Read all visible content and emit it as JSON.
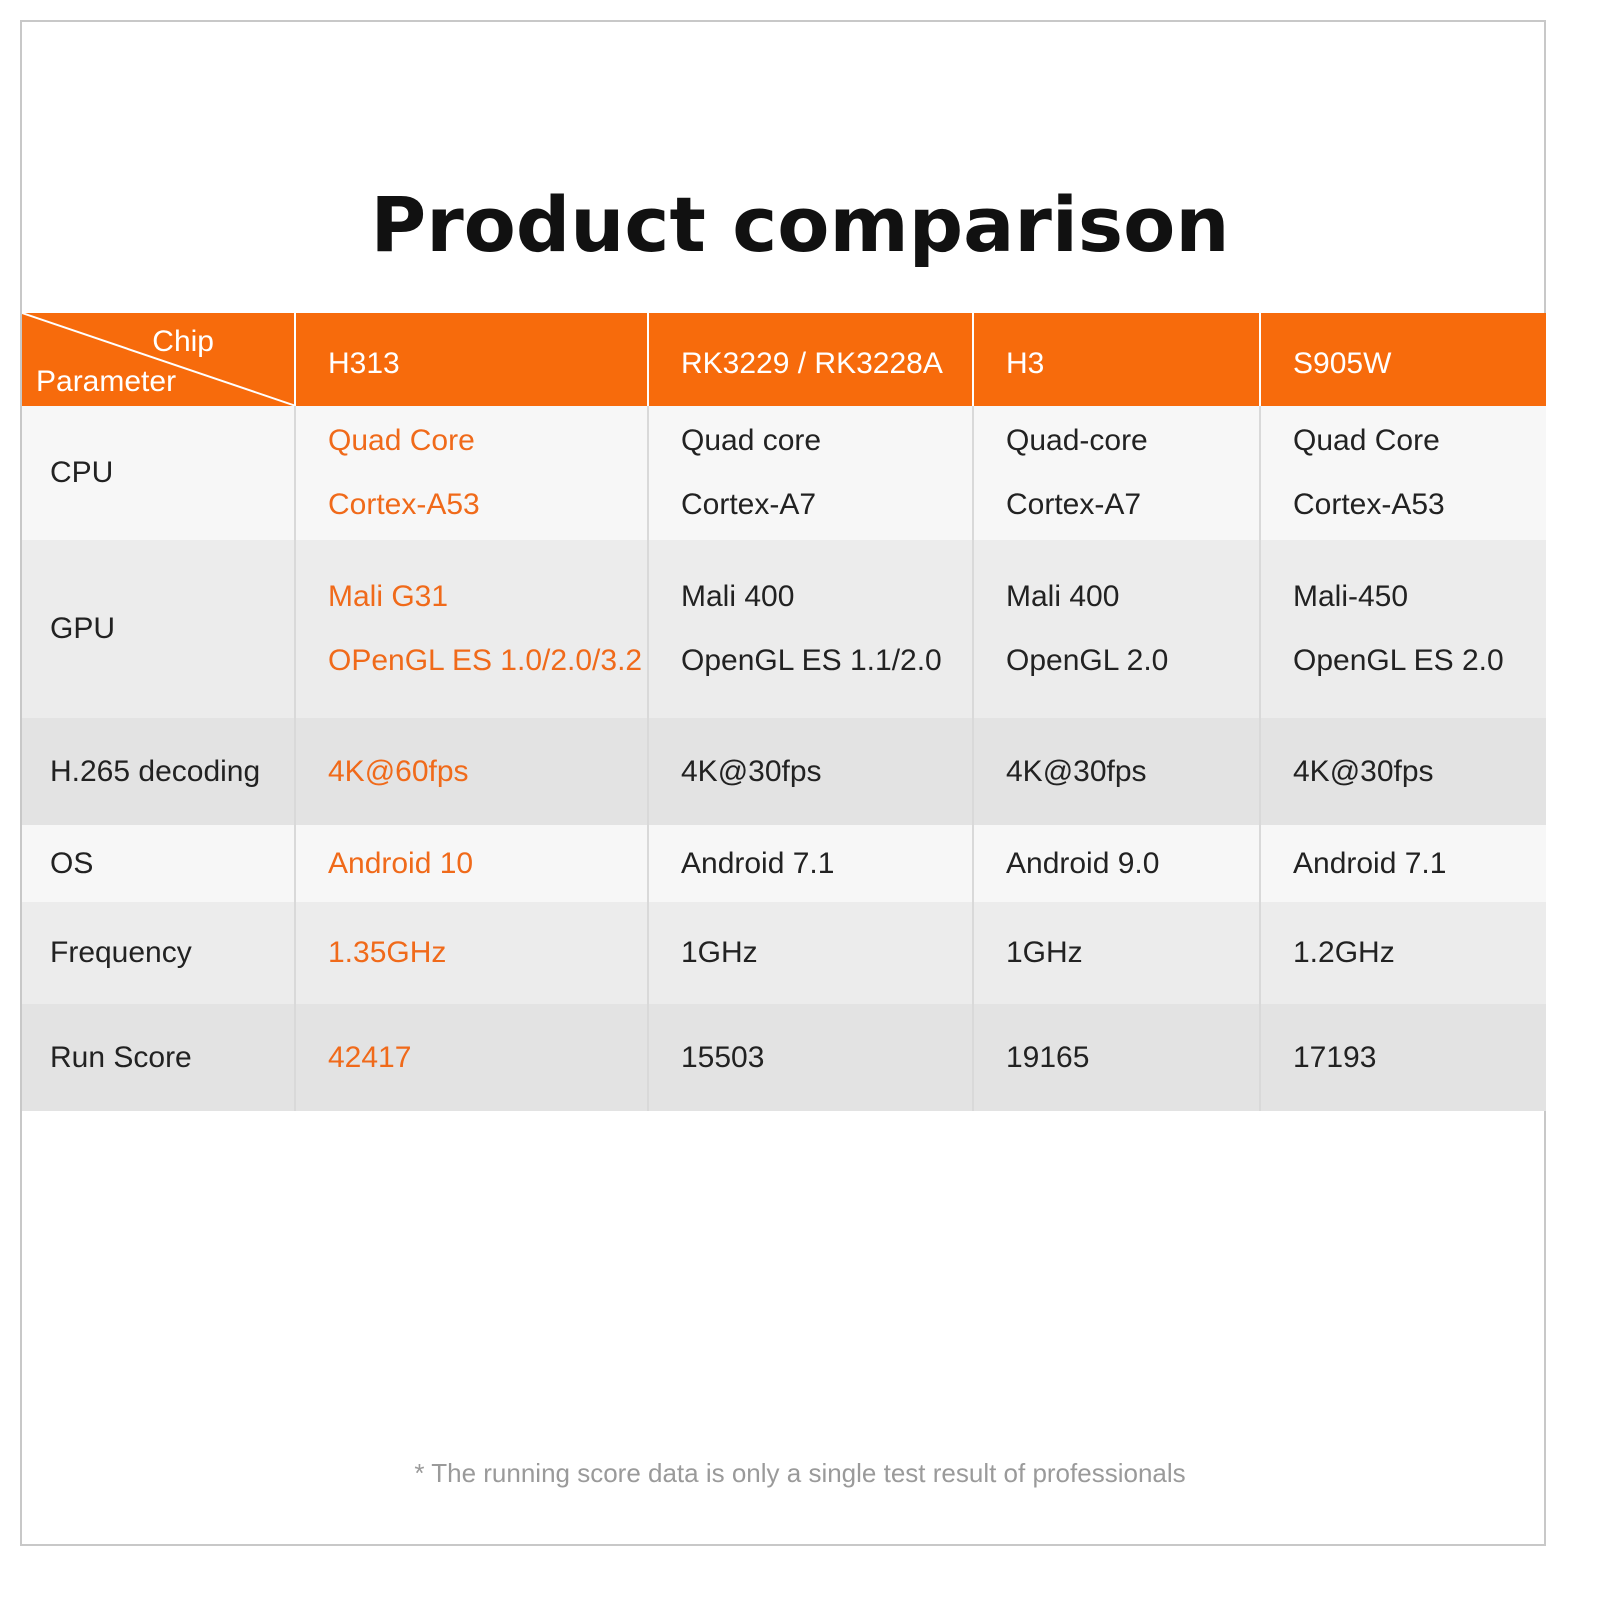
{
  "title": "Product comparison",
  "header": {
    "chip_label": "Chip",
    "parameter_label": "Parameter",
    "chips": [
      "H313",
      "RK3229 / RK3228A",
      "H3",
      "S905W"
    ]
  },
  "rows": [
    {
      "param": "CPU",
      "values": [
        [
          "Quad Core",
          "Cortex-A53"
        ],
        [
          "Quad core",
          "Cortex-A7"
        ],
        [
          "Quad-core",
          "Cortex-A7"
        ],
        [
          "Quad Core",
          "Cortex-A53"
        ]
      ]
    },
    {
      "param": "GPU",
      "values": [
        [
          "Mali G31",
          "OPenGL ES 1.0/2.0/3.2"
        ],
        [
          "Mali 400",
          "OpenGL ES 1.1/2.0"
        ],
        [
          "Mali 400",
          "OpenGL 2.0"
        ],
        [
          "Mali-450",
          "OpenGL ES 2.0"
        ]
      ]
    },
    {
      "param": "H.265 decoding",
      "values": [
        [
          "4K@60fps"
        ],
        [
          "4K@30fps"
        ],
        [
          "4K@30fps"
        ],
        [
          "4K@30fps"
        ]
      ]
    },
    {
      "param": "OS",
      "values": [
        [
          "Android 10"
        ],
        [
          "Android 7.1"
        ],
        [
          "Android 9.0"
        ],
        [
          "Android 7.1"
        ]
      ]
    },
    {
      "param": "Frequency",
      "values": [
        [
          "1.35GHz"
        ],
        [
          "1GHz"
        ],
        [
          "1GHz"
        ],
        [
          "1.2GHz"
        ]
      ]
    },
    {
      "param": "Run Score",
      "values": [
        [
          "42417"
        ],
        [
          "15503"
        ],
        [
          "19165"
        ],
        [
          "17193"
        ]
      ]
    }
  ],
  "footnote": "* The running score data is only a single test result of professionals",
  "colors": {
    "accent": "#f76b0c",
    "highlight_text": "#f06a1a"
  }
}
